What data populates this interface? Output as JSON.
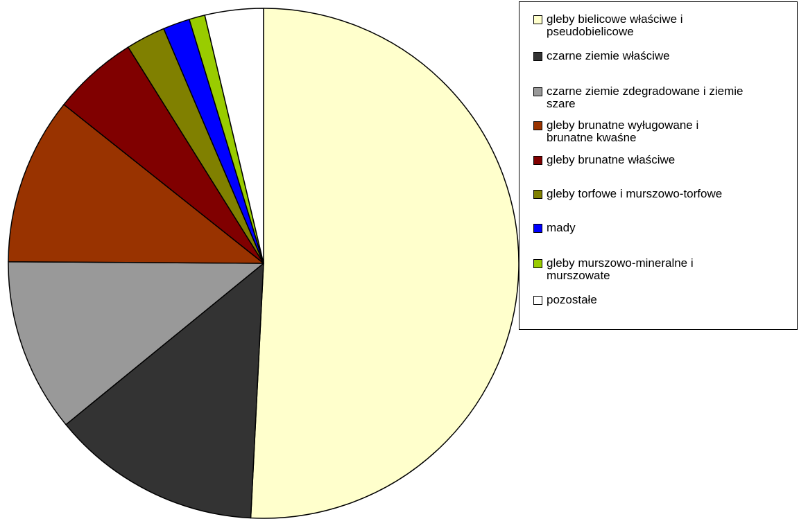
{
  "chart_data": {
    "type": "pie",
    "categories": [
      "gleby bielicowe właściwe i pseudobielicowe",
      "czarne ziemie właściwe",
      "czarne ziemie zdegradowane i ziemie szare",
      "gleby brunatne wyługowane i brunatne kwaśne",
      "gleby brunatne właściwe",
      "gleby torfowe i murszowo-torfowe",
      "mady",
      "gleby murszowo-mineralne i murszowate",
      "pozostałe"
    ],
    "values": [
      50.8,
      13.3,
      11.0,
      10.6,
      5.4,
      2.5,
      1.7,
      1.0,
      3.7
    ],
    "colors": [
      "#ffffcc",
      "#333333",
      "#999999",
      "#993300",
      "#800000",
      "#808000",
      "#0000ff",
      "#99cc00",
      "#ffffff"
    ],
    "legend": "right"
  }
}
